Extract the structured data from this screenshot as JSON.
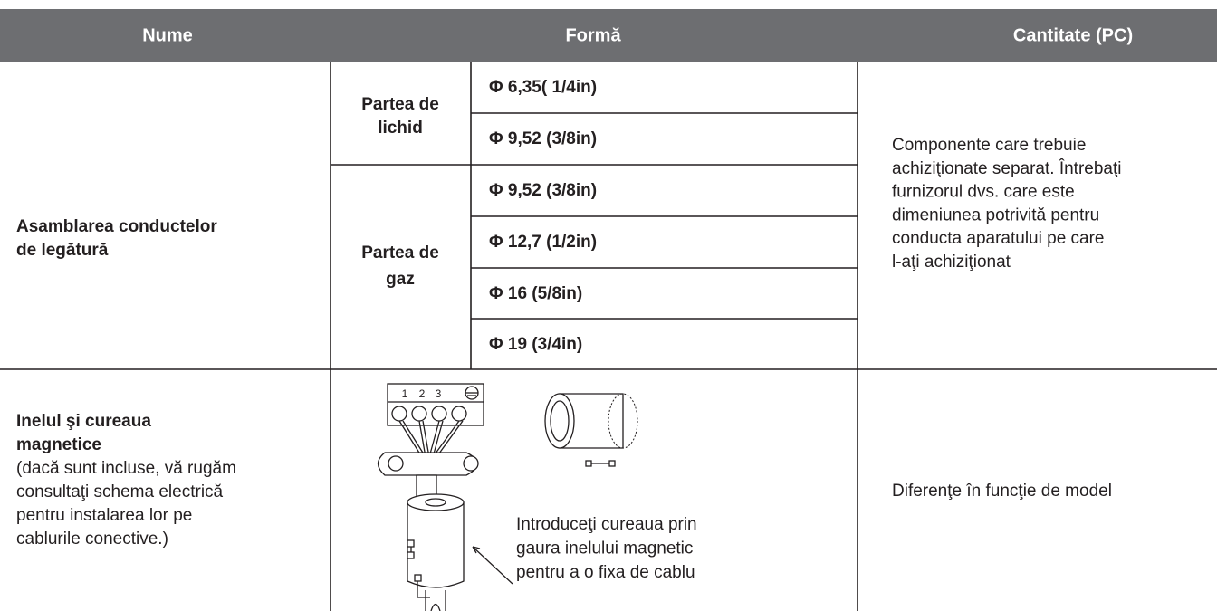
{
  "table": {
    "header": [
      "Nume",
      "Formă",
      "Cantitate (PC)"
    ],
    "rows": [
      {
        "name": [
          "Asamblarea conductelor",
          "de legătură"
        ],
        "groups": [
          {
            "label": [
              "Partea de",
              "lichid"
            ],
            "sizes": [
              "Φ 6,35( 1/4in)",
              "Φ 9,52 (3/8in)"
            ]
          },
          {
            "label": [
              "Partea de",
              "gaz"
            ],
            "sizes": [
              "Φ 9,52 (3/8in)",
              "Φ 12,7 (1/2in)",
              "Φ 16 (5/8in)",
              "Φ 19 (3/4in)"
            ]
          }
        ],
        "quantity": [
          "Componente care trebuie",
          "achiziţionate separat. Întrebaţi",
          "furnizorul dvs. care este",
          "dimeniunea potrivită pentru",
          "conducta aparatului pe care",
          "l-aţi achiziţionat"
        ]
      },
      {
        "name_title": [
          "Inelul şi cureaua",
          "magnetice"
        ],
        "name_note": [
          "(dacă sunt incluse, vă rugăm",
          "consultaţi schema electrică",
          "pentru instalarea lor pe",
          "cablurile conective.)"
        ],
        "diagram": {
          "terminals": [
            "1",
            "2",
            "3"
          ],
          "note": [
            "Introduceţi cureaua prin",
            "gaura inelului magnetic",
            "pentru a o fixa de cablu"
          ]
        },
        "quantity": [
          "Diferenţe în funcţie de model"
        ]
      }
    ]
  }
}
